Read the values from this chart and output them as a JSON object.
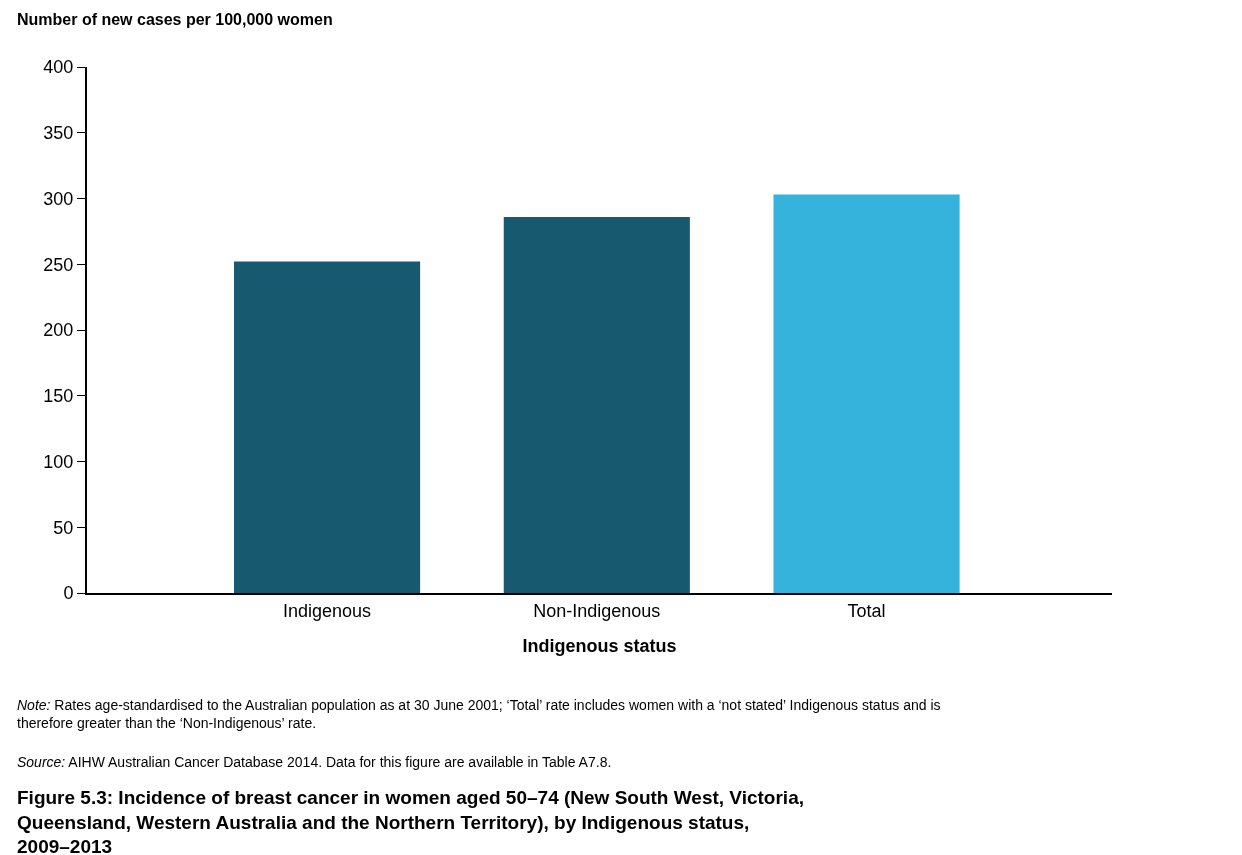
{
  "chart_data": {
    "type": "bar",
    "title": "Figure 5.3: Incidence of breast cancer in women aged 50–74 (New South West, Victoria, Queensland, Western Australia and the Northern Territory), by Indigenous status, 2009–2013",
    "xlabel": "Indigenous status",
    "ylabel": "Number of new cases per 100,000 women",
    "categories": [
      "Indigenous",
      "Non-Indigenous",
      "Total"
    ],
    "values": [
      252,
      286,
      303
    ],
    "colors": [
      "#175a6f",
      "#175a6f",
      "#35b3dc"
    ],
    "ylim": [
      0,
      400
    ],
    "yticks": [
      0,
      50,
      100,
      150,
      200,
      250,
      300,
      350,
      400
    ],
    "annotations": [
      "Note: Rates age-standardised to the Australian population as at 30 June 2001; ‘Total’ rate includes women with a ‘not stated’ Indigenous status and is therefore greater than the ‘Non-Indigenous’ rate.",
      "Source: AIHW Australian Cancer Database 2014. Data for this figure are available in Table A7.8."
    ]
  }
}
